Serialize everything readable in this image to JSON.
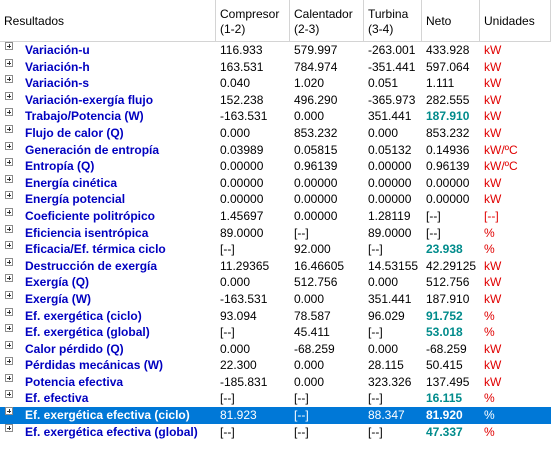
{
  "header": {
    "col0": "Resultados",
    "col1_l1": "Compresor",
    "col1_l2": "(1-2)",
    "col2_l1": "Calentador",
    "col2_l2": "(2-3)",
    "col3_l1": "Turbina",
    "col3_l2": "(3-4)",
    "col4": "Neto",
    "col5": "Unidades"
  },
  "selected_row": 25,
  "rows": [
    {
      "name": "Variación-u",
      "c": "116.933",
      "h": "579.997",
      "t": "-263.001",
      "n": "433.928",
      "u": "kW",
      "hl": false
    },
    {
      "name": "Variación-h",
      "c": "163.531",
      "h": "784.974",
      "t": "-351.441",
      "n": "597.064",
      "u": "kW",
      "hl": false
    },
    {
      "name": "Variación-s",
      "c": "0.040",
      "h": "1.020",
      "t": "0.051",
      "n": "1.111",
      "u": "kW",
      "hl": false
    },
    {
      "name": "Variación-exergía flujo",
      "c": "152.238",
      "h": "496.290",
      "t": "-365.973",
      "n": "282.555",
      "u": "kW",
      "hl": false
    },
    {
      "name": "Trabajo/Potencia (W)",
      "c": "-163.531",
      "h": "0.000",
      "t": "351.441",
      "n": "187.910",
      "u": "kW",
      "hl": true
    },
    {
      "name": "Flujo de calor (Q)",
      "c": "0.000",
      "h": "853.232",
      "t": "0.000",
      "n": "853.232",
      "u": "kW",
      "hl": false
    },
    {
      "name": "Generación de entropía",
      "c": "0.03989",
      "h": "0.05815",
      "t": "0.05132",
      "n": "0.14936",
      "u": "kW/ºC",
      "hl": false
    },
    {
      "name": "Entropía (Q)",
      "c": "0.00000",
      "h": "0.96139",
      "t": "0.00000",
      "n": "0.96139",
      "u": "kW/ºC",
      "hl": false
    },
    {
      "name": "Energía cinética",
      "c": "0.00000",
      "h": "0.00000",
      "t": "0.00000",
      "n": "0.00000",
      "u": "kW",
      "hl": false
    },
    {
      "name": "Energía potencial",
      "c": "0.00000",
      "h": "0.00000",
      "t": "0.00000",
      "n": "0.00000",
      "u": "kW",
      "hl": false
    },
    {
      "name": "Coeficiente politrópico",
      "c": "1.45697",
      "h": "0.00000",
      "t": "1.28119",
      "n": "[--]",
      "u": "[--]",
      "hl": false
    },
    {
      "name": "Eficiencia isentrópica",
      "c": "89.0000",
      "h": "[--]",
      "t": "89.0000",
      "n": "[--]",
      "u": "%",
      "hl": false
    },
    {
      "name": "Eficacia/Ef. térmica ciclo",
      "c": "[--]",
      "h": "92.000",
      "t": "[--]",
      "n": "23.938",
      "u": "%",
      "hl": true
    },
    {
      "name": "Destrucción de exergía",
      "c": "11.29365",
      "h": "16.46605",
      "t": "14.53155",
      "n": "42.29125",
      "u": "kW",
      "hl": false
    },
    {
      "name": "Exergía (Q)",
      "c": "0.000",
      "h": "512.756",
      "t": "0.000",
      "n": "512.756",
      "u": "kW",
      "hl": false
    },
    {
      "name": "Exergía (W)",
      "c": "-163.531",
      "h": "0.000",
      "t": "351.441",
      "n": "187.910",
      "u": "kW",
      "hl": false
    },
    {
      "name": "Ef. exergética (ciclo)",
      "c": "93.094",
      "h": "78.587",
      "t": "96.029",
      "n": "91.752",
      "u": "%",
      "hl": true
    },
    {
      "name": "Ef. exergética (global)",
      "c": "[--]",
      "h": "45.411",
      "t": "[--]",
      "n": "53.018",
      "u": "%",
      "hl": true
    },
    {
      "name": "Calor pérdido (Q)",
      "c": "0.000",
      "h": "-68.259",
      "t": "0.000",
      "n": "-68.259",
      "u": "kW",
      "hl": false
    },
    {
      "name": "Pérdidas mecánicas (W)",
      "c": "22.300",
      "h": "0.000",
      "t": "28.115",
      "n": "50.415",
      "u": "kW",
      "hl": false
    },
    {
      "name": "Potencia efectiva",
      "c": "-185.831",
      "h": "0.000",
      "t": "323.326",
      "n": "137.495",
      "u": "kW",
      "hl": false
    },
    {
      "name": "Ef. efectiva",
      "c": "[--]",
      "h": "[--]",
      "t": "[--]",
      "n": "16.115",
      "u": "%",
      "hl": true
    },
    {
      "name": "Ef. exergética efectiva (ciclo)",
      "c": "81.923",
      "h": "[--]",
      "t": "88.347",
      "n": "81.920",
      "u": "%",
      "hl": true
    },
    {
      "name": "Ef. exergética efectiva (global)",
      "c": "[--]",
      "h": "[--]",
      "t": "[--]",
      "n": "47.337",
      "u": "%",
      "hl": true
    }
  ]
}
